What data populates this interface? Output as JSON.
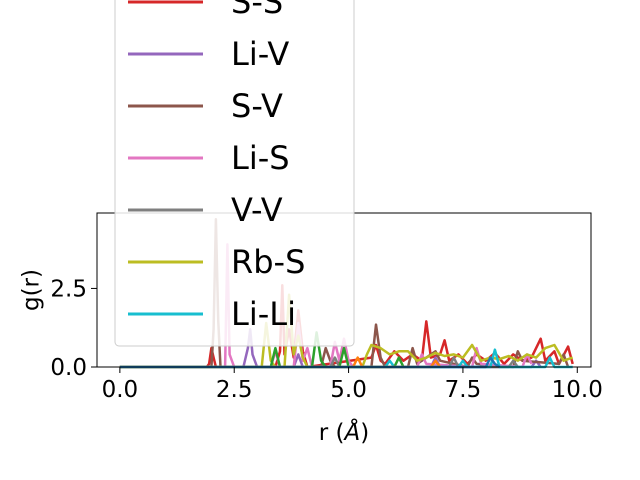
{
  "chart_data": {
    "type": "line",
    "xlabel": "r (",
    "xlabel_unit": "Å",
    "xlabel_close": ")",
    "ylabel": "g(r)",
    "xlim": [
      -0.5,
      10.3
    ],
    "ylim": [
      0,
      4.9
    ],
    "xticks": [
      0.0,
      2.5,
      5.0,
      7.5,
      10.0
    ],
    "xtick_labels": [
      "0.0",
      "2.5",
      "5.0",
      "7.5",
      "10.0"
    ],
    "yticks": [
      0.0,
      2.5
    ],
    "ytick_labels": [
      "0.0",
      "2.5"
    ],
    "grid": false,
    "legend_position": "top-left",
    "series": [
      {
        "name": "S-S",
        "color": "#d62728",
        "points": [
          [
            0,
            0
          ],
          [
            1.9,
            0
          ],
          [
            1.95,
            0.1
          ],
          [
            2.0,
            0.6
          ],
          [
            2.05,
            0.3
          ],
          [
            2.1,
            0
          ],
          [
            3.4,
            0
          ],
          [
            3.5,
            0.5
          ],
          [
            3.55,
            2.6
          ],
          [
            3.6,
            0.4
          ],
          [
            3.7,
            1.2
          ],
          [
            3.8,
            0.3
          ],
          [
            3.9,
            1.8
          ],
          [
            4.0,
            0.5
          ],
          [
            4.1,
            0
          ],
          [
            5.5,
            0.3
          ],
          [
            5.6,
            0.7
          ],
          [
            5.7,
            0.2
          ],
          [
            5.8,
            0.1
          ],
          [
            6.0,
            0.5
          ],
          [
            6.2,
            0.2
          ],
          [
            6.4,
            0.4
          ],
          [
            6.6,
            0.2
          ],
          [
            6.7,
            1.45
          ],
          [
            6.8,
            0.3
          ],
          [
            7.0,
            0.4
          ],
          [
            7.1,
            0.85
          ],
          [
            7.2,
            0.2
          ],
          [
            7.4,
            0.4
          ],
          [
            7.6,
            0.1
          ],
          [
            7.8,
            0.4
          ],
          [
            8.0,
            0.2
          ],
          [
            8.2,
            0.45
          ],
          [
            8.4,
            0.1
          ],
          [
            8.6,
            0.4
          ],
          [
            8.8,
            0.2
          ],
          [
            9.0,
            0.3
          ],
          [
            9.2,
            0.9
          ],
          [
            9.3,
            0.2
          ],
          [
            9.5,
            0.5
          ],
          [
            9.6,
            0.1
          ],
          [
            9.8,
            0.65
          ],
          [
            9.9,
            0.1
          ]
        ]
      },
      {
        "name": "Li-V",
        "color": "#9467bd",
        "points": [
          [
            0,
            0
          ],
          [
            2.7,
            0
          ],
          [
            2.8,
            0.6
          ],
          [
            2.85,
            1.2
          ],
          [
            2.9,
            0.4
          ],
          [
            3.0,
            0
          ],
          [
            3.8,
            0
          ],
          [
            3.9,
            0.4
          ],
          [
            4.0,
            0
          ],
          [
            6.8,
            0
          ],
          [
            6.9,
            0.3
          ],
          [
            7.0,
            0
          ],
          [
            9.0,
            0
          ],
          [
            9.1,
            0.2
          ],
          [
            9.2,
            0
          ]
        ]
      },
      {
        "name": "S-V",
        "color": "#8c564b",
        "points": [
          [
            0,
            0
          ],
          [
            2.0,
            0
          ],
          [
            2.05,
            1.2
          ],
          [
            2.1,
            4.7
          ],
          [
            2.15,
            1.5
          ],
          [
            2.2,
            0
          ],
          [
            4.4,
            0
          ],
          [
            4.5,
            0.6
          ],
          [
            4.6,
            0.2
          ],
          [
            4.7,
            0
          ],
          [
            5.5,
            0
          ],
          [
            5.6,
            1.35
          ],
          [
            5.7,
            0.3
          ],
          [
            5.8,
            0
          ],
          [
            6.3,
            0
          ],
          [
            6.4,
            0.6
          ],
          [
            6.5,
            0.1
          ],
          [
            6.9,
            0.5
          ],
          [
            7.0,
            0.2
          ],
          [
            7.6,
            0
          ],
          [
            7.7,
            0.3
          ],
          [
            7.8,
            0.1
          ],
          [
            8.6,
            0
          ],
          [
            8.7,
            0.5
          ],
          [
            8.8,
            0.2
          ],
          [
            9.6,
            0.1
          ],
          [
            9.7,
            0.4
          ],
          [
            9.8,
            0
          ]
        ]
      },
      {
        "name": "Li-S",
        "color": "#e377c2",
        "points": [
          [
            0,
            0
          ],
          [
            2.3,
            0
          ],
          [
            2.35,
            3.9
          ],
          [
            2.4,
            0.4
          ],
          [
            2.5,
            0
          ],
          [
            3.3,
            0
          ],
          [
            3.4,
            0.5
          ],
          [
            3.5,
            0
          ],
          [
            3.8,
            0
          ],
          [
            3.9,
            1.4
          ],
          [
            4.0,
            0.2
          ],
          [
            4.1,
            0.6
          ],
          [
            4.2,
            0
          ],
          [
            4.6,
            0
          ],
          [
            4.7,
            0.8
          ],
          [
            4.8,
            0.2
          ],
          [
            4.9,
            0.9
          ],
          [
            5.0,
            0.2
          ],
          [
            5.1,
            0
          ],
          [
            6.5,
            0
          ],
          [
            6.6,
            0.4
          ],
          [
            6.7,
            0.1
          ],
          [
            7.7,
            0
          ],
          [
            7.8,
            0.6
          ],
          [
            7.9,
            0.1
          ],
          [
            8.8,
            0
          ],
          [
            8.9,
            0.4
          ],
          [
            9.0,
            0.1
          ]
        ]
      },
      {
        "name": "V-V",
        "color": "#7f7f7f",
        "points": [
          [
            0,
            0
          ],
          [
            4.6,
            0
          ],
          [
            4.7,
            0.3
          ],
          [
            4.8,
            0
          ],
          [
            7.2,
            0
          ],
          [
            7.3,
            0.3
          ],
          [
            7.4,
            0
          ],
          [
            8.5,
            0
          ],
          [
            8.6,
            0.2
          ],
          [
            8.7,
            0
          ]
        ]
      },
      {
        "name": "Rb-S",
        "color": "#bcbd22",
        "points": [
          [
            0,
            0
          ],
          [
            3.1,
            0
          ],
          [
            3.2,
            1.4
          ],
          [
            3.3,
            0.2
          ],
          [
            3.4,
            0
          ],
          [
            3.6,
            0
          ],
          [
            3.7,
            2.3
          ],
          [
            3.8,
            0.4
          ],
          [
            3.9,
            1.0
          ],
          [
            4.0,
            0.3
          ],
          [
            4.1,
            0
          ],
          [
            5.3,
            0
          ],
          [
            5.4,
            0.4
          ],
          [
            5.5,
            0.7
          ],
          [
            5.7,
            0.6
          ],
          [
            5.9,
            0.4
          ],
          [
            6.1,
            0.5
          ],
          [
            6.3,
            0.5
          ],
          [
            6.5,
            0.2
          ],
          [
            6.7,
            0.3
          ],
          [
            6.9,
            0.45
          ],
          [
            7.1,
            0.35
          ],
          [
            7.3,
            0.4
          ],
          [
            7.5,
            0.3
          ],
          [
            7.7,
            0.7
          ],
          [
            7.9,
            0.2
          ],
          [
            8.1,
            0.3
          ],
          [
            8.3,
            0.25
          ],
          [
            8.5,
            0.35
          ],
          [
            8.7,
            0.2
          ],
          [
            8.9,
            0.4
          ],
          [
            9.1,
            0.3
          ],
          [
            9.3,
            0.6
          ],
          [
            9.5,
            0.7
          ],
          [
            9.7,
            0.2
          ],
          [
            9.9,
            0.3
          ]
        ]
      },
      {
        "name": "Li-Li",
        "color": "#17becf",
        "points": [
          [
            0,
            0
          ],
          [
            5.8,
            0
          ],
          [
            5.9,
            0.2
          ],
          [
            6.0,
            0
          ],
          [
            7.4,
            0
          ],
          [
            7.5,
            0.2
          ],
          [
            7.6,
            0
          ],
          [
            8.1,
            0
          ],
          [
            8.2,
            0.55
          ],
          [
            8.3,
            0
          ],
          [
            9.3,
            0
          ],
          [
            9.4,
            0.3
          ],
          [
            9.5,
            0
          ],
          [
            9.9,
            0
          ]
        ]
      },
      {
        "name": "",
        "color": "#2ca02c",
        "points": [
          [
            0,
            0
          ],
          [
            3.3,
            0
          ],
          [
            3.4,
            0.6
          ],
          [
            3.5,
            0
          ],
          [
            4.2,
            0
          ],
          [
            4.3,
            1.1
          ],
          [
            4.4,
            0.2
          ],
          [
            4.5,
            0
          ],
          [
            4.8,
            0
          ],
          [
            4.9,
            0.6
          ],
          [
            5.0,
            0
          ],
          [
            6.0,
            0
          ],
          [
            6.1,
            0.3
          ],
          [
            6.2,
            0
          ]
        ]
      },
      {
        "name": "",
        "color": "#ff7f0e",
        "points": [
          [
            0,
            0
          ],
          [
            5.1,
            0
          ],
          [
            5.2,
            0.3
          ],
          [
            5.3,
            0
          ],
          [
            6.8,
            0
          ],
          [
            6.9,
            0.2
          ],
          [
            7.0,
            0
          ]
        ]
      },
      {
        "name": "",
        "color": "#1f77b4",
        "points": [
          [
            0,
            0
          ],
          [
            8.0,
            0
          ],
          [
            8.1,
            0.3
          ],
          [
            8.2,
            0.1
          ],
          [
            8.3,
            0
          ]
        ]
      }
    ]
  }
}
